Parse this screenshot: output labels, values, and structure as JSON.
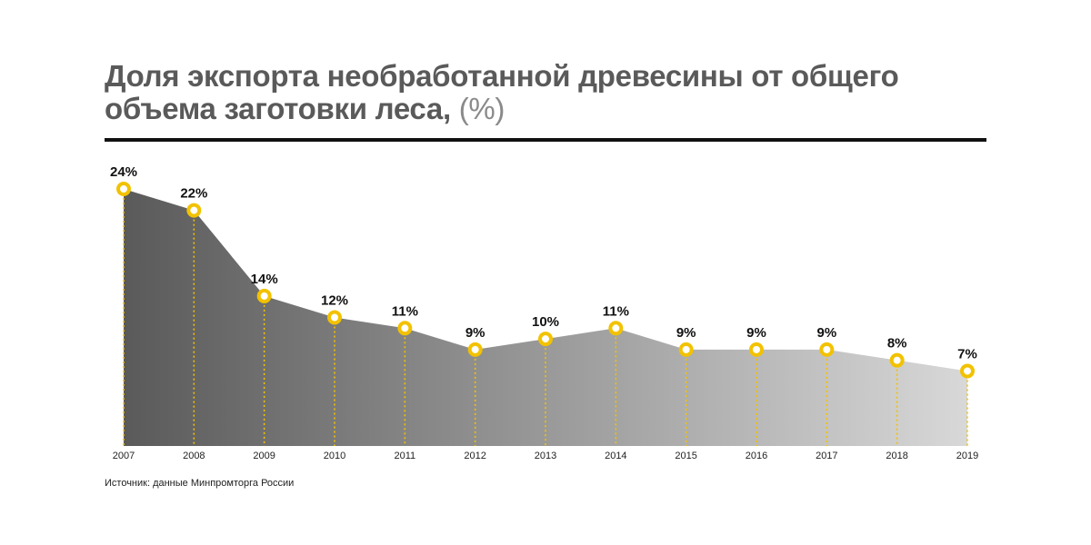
{
  "header": {
    "title": "Доля экспорта необработанной древесины от общего объема заготовки леса,",
    "unit": "(%)"
  },
  "footer": {
    "source": "Источник: данные Минпромторга России"
  },
  "colors": {
    "marker": "#f2c200",
    "area_dark": "#5a5a5a",
    "area_light": "#d8d8d8",
    "text": "#111111"
  },
  "chart_data": {
    "type": "area",
    "categories": [
      "2007",
      "2008",
      "2009",
      "2010",
      "2011",
      "2012",
      "2013",
      "2014",
      "2015",
      "2016",
      "2017",
      "2018",
      "2019"
    ],
    "values": [
      24,
      22,
      14,
      12,
      11,
      9,
      10,
      11,
      9,
      9,
      9,
      8,
      7
    ],
    "data_labels": [
      "24%",
      "22%",
      "14%",
      "12%",
      "11%",
      "9%",
      "10%",
      "11%",
      "9%",
      "9%",
      "9%",
      "8%",
      "7%"
    ],
    "ylim": [
      0,
      24
    ],
    "grid": false,
    "legend": "none"
  }
}
